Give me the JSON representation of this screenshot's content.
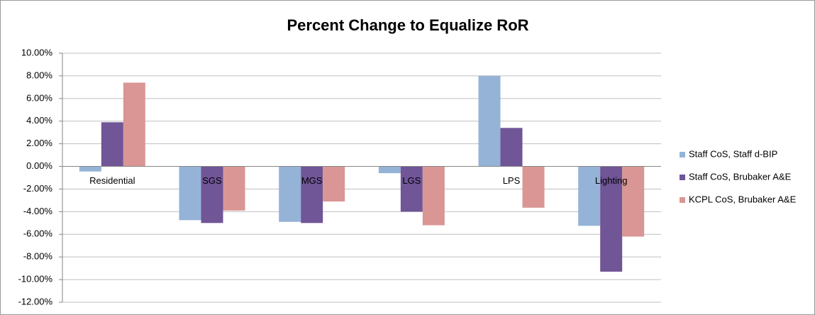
{
  "chart_data": {
    "type": "bar",
    "title": "Percent Change to Equalize RoR",
    "categories": [
      "Residential",
      "SGS",
      "MGS",
      "LGS",
      "LPS",
      "Lighting"
    ],
    "series": [
      {
        "name": "Staff CoS, Staff d-BIP",
        "color": "#95b3d7",
        "values": [
          -0.45,
          -4.75,
          -4.9,
          -0.6,
          8.0,
          -5.25
        ]
      },
      {
        "name": "Staff CoS, Brubaker A&E",
        "color": "#705597",
        "values": [
          3.9,
          -5.0,
          -5.0,
          -4.0,
          3.4,
          -9.3
        ]
      },
      {
        "name": "KCPL CoS, Brubaker A&E",
        "color": "#d99694",
        "values": [
          7.4,
          -3.9,
          -3.1,
          -5.2,
          -3.65,
          -6.2
        ]
      }
    ],
    "ylim": [
      -12,
      10
    ],
    "yticks": [
      {
        "value": -12,
        "label": "-12.00%"
      },
      {
        "value": -10,
        "label": "-10.00%"
      },
      {
        "value": -8,
        "label": "-8.00%"
      },
      {
        "value": -6,
        "label": "-6.00%"
      },
      {
        "value": -4,
        "label": "-4.00%"
      },
      {
        "value": -2,
        "label": "-2.00%"
      },
      {
        "value": 0,
        "label": "0.00%"
      },
      {
        "value": 2,
        "label": "2.00%"
      },
      {
        "value": 4,
        "label": "4.00%"
      },
      {
        "value": 6,
        "label": "6.00%"
      },
      {
        "value": 8,
        "label": "8.00%"
      },
      {
        "value": 10,
        "label": "10.00%"
      }
    ],
    "grid": true,
    "legend": "right"
  }
}
